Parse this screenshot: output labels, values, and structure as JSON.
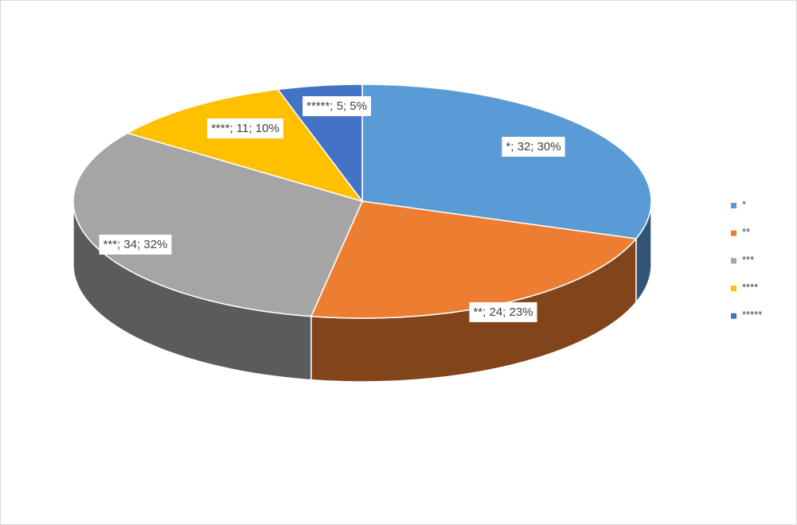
{
  "chart_data": {
    "type": "pie",
    "categories": [
      "*",
      "**",
      "***",
      "****",
      "*****"
    ],
    "values": [
      32,
      24,
      34,
      11,
      5
    ],
    "value_labels": [
      "*; 32; 30%",
      "**; 24; 23%",
      "***; 34; 32%",
      "****; 11; 10%",
      "*****; 5; 5%"
    ],
    "colors": [
      "#5b9bd5",
      "#ed7d31",
      "#a5a5a5",
      "#ffc000",
      "#4472c4"
    ],
    "legend": "right"
  }
}
